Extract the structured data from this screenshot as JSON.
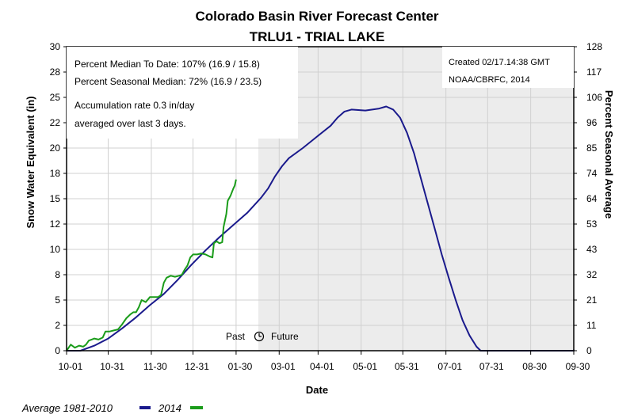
{
  "chart_data": {
    "type": "line",
    "title": "Colorado Basin River Forecast Center",
    "subtitle": "TRLU1 - TRIAL LAKE",
    "xlabel": "Date",
    "ylabel": "Snow Water Equivalent (in)",
    "y2label": "Percent Seasonal Average",
    "x_tick_labels": [
      "10-01",
      "10-31",
      "11-30",
      "12-31",
      "01-30",
      "03-01",
      "04-01",
      "05-01",
      "05-31",
      "07-01",
      "07-31",
      "08-30",
      "09-30"
    ],
    "y_ticks": [
      "0",
      "2",
      "5",
      "8",
      "10",
      "12",
      "15",
      "18",
      "20",
      "22",
      "25",
      "28",
      "30"
    ],
    "y_ticks_values": [
      0,
      2.5,
      5,
      7.5,
      10,
      12.5,
      15,
      17.5,
      20,
      22.5,
      25,
      27.5,
      30
    ],
    "y2_ticks": [
      "0",
      "11",
      "21",
      "32",
      "43",
      "53",
      "64",
      "74",
      "85",
      "96",
      "106",
      "117",
      "128"
    ],
    "ylim": [
      0,
      30
    ],
    "y2lim": [
      0,
      128
    ],
    "xlim_days": [
      0,
      365
    ],
    "grid": true,
    "annotations": {
      "pct_median_to_date": "Percent Median To Date: 107% (16.9 / 15.8)",
      "pct_seasonal_median": "Percent Seasonal Median: 72% (16.9 / 23.5)",
      "accum_line1": "Accumulation rate 0.3 in/day",
      "accum_line2": "averaged over last 3 days.",
      "created": "Created 02/17.14:38 GMT",
      "source": "NOAA/CBRFC, 2014",
      "past": "Past",
      "future": "Future"
    },
    "series": [
      {
        "name": "Average 1981-2010",
        "color": "#1a1a8c",
        "points": [
          [
            0,
            0
          ],
          [
            10,
            0
          ],
          [
            20,
            0.5
          ],
          [
            30,
            1.2
          ],
          [
            40,
            2.2
          ],
          [
            50,
            3.3
          ],
          [
            60,
            4.5
          ],
          [
            70,
            5.6
          ],
          [
            80,
            7
          ],
          [
            90,
            8.5
          ],
          [
            100,
            9.9
          ],
          [
            110,
            11.2
          ],
          [
            120,
            12.4
          ],
          [
            130,
            13.6
          ],
          [
            140,
            15.1
          ],
          [
            145,
            16
          ],
          [
            150,
            17.2
          ],
          [
            155,
            18.2
          ],
          [
            160,
            19
          ],
          [
            170,
            20
          ],
          [
            180,
            21.1
          ],
          [
            190,
            22.2
          ],
          [
            195,
            23
          ],
          [
            200,
            23.6
          ],
          [
            205,
            23.8
          ],
          [
            215,
            23.7
          ],
          [
            225,
            23.9
          ],
          [
            230,
            24.1
          ],
          [
            235,
            23.8
          ],
          [
            240,
            23
          ],
          [
            245,
            21.5
          ],
          [
            250,
            19.5
          ],
          [
            255,
            17
          ],
          [
            260,
            14.5
          ],
          [
            265,
            12
          ],
          [
            270,
            9.5
          ],
          [
            275,
            7.2
          ],
          [
            280,
            5
          ],
          [
            285,
            3
          ],
          [
            290,
            1.5
          ],
          [
            295,
            0.4
          ],
          [
            298,
            0
          ],
          [
            305,
            0
          ],
          [
            365,
            0
          ],
          [
            365,
            0.1
          ]
        ]
      },
      {
        "name": "2014",
        "color": "#1a9c1a",
        "points": [
          [
            0,
            0
          ],
          [
            3,
            0.6
          ],
          [
            6,
            0.3
          ],
          [
            9,
            0.5
          ],
          [
            12,
            0.4
          ],
          [
            14,
            0.6
          ],
          [
            16,
            1
          ],
          [
            18,
            1.1
          ],
          [
            20,
            1.2
          ],
          [
            23,
            1.1
          ],
          [
            26,
            1.3
          ],
          [
            28,
            1.9
          ],
          [
            31,
            1.9
          ],
          [
            34,
            2
          ],
          [
            37,
            2.1
          ],
          [
            40,
            2.6
          ],
          [
            43,
            3.2
          ],
          [
            46,
            3.6
          ],
          [
            48,
            3.8
          ],
          [
            50,
            3.8
          ],
          [
            52,
            4.3
          ],
          [
            54,
            5
          ],
          [
            57,
            4.8
          ],
          [
            60,
            5.3
          ],
          [
            63,
            5.3
          ],
          [
            66,
            5.3
          ],
          [
            68,
            5.5
          ],
          [
            70,
            6.7
          ],
          [
            72,
            7.2
          ],
          [
            75,
            7.4
          ],
          [
            78,
            7.3
          ],
          [
            81,
            7.4
          ],
          [
            83,
            7.5
          ],
          [
            85,
            8
          ],
          [
            87,
            8.4
          ],
          [
            89,
            9.2
          ],
          [
            91,
            9.5
          ],
          [
            94,
            9.5
          ],
          [
            97,
            9.6
          ],
          [
            100,
            9.5
          ],
          [
            103,
            9.3
          ],
          [
            105,
            9.2
          ],
          [
            106,
            10.6
          ],
          [
            108,
            10.8
          ],
          [
            110,
            10.6
          ],
          [
            112,
            10.7
          ],
          [
            113,
            12.2
          ],
          [
            115,
            13.5
          ],
          [
            116,
            14.8
          ],
          [
            118,
            15.3
          ],
          [
            120,
            16
          ],
          [
            121,
            16.3
          ],
          [
            122,
            16.9
          ]
        ]
      }
    ],
    "legend": [
      {
        "label": "Average 1981-2010",
        "color": "#1a1a8c"
      },
      {
        "label": "2014",
        "color": "#1a9c1a"
      }
    ],
    "legend_position": "bottom-left"
  }
}
